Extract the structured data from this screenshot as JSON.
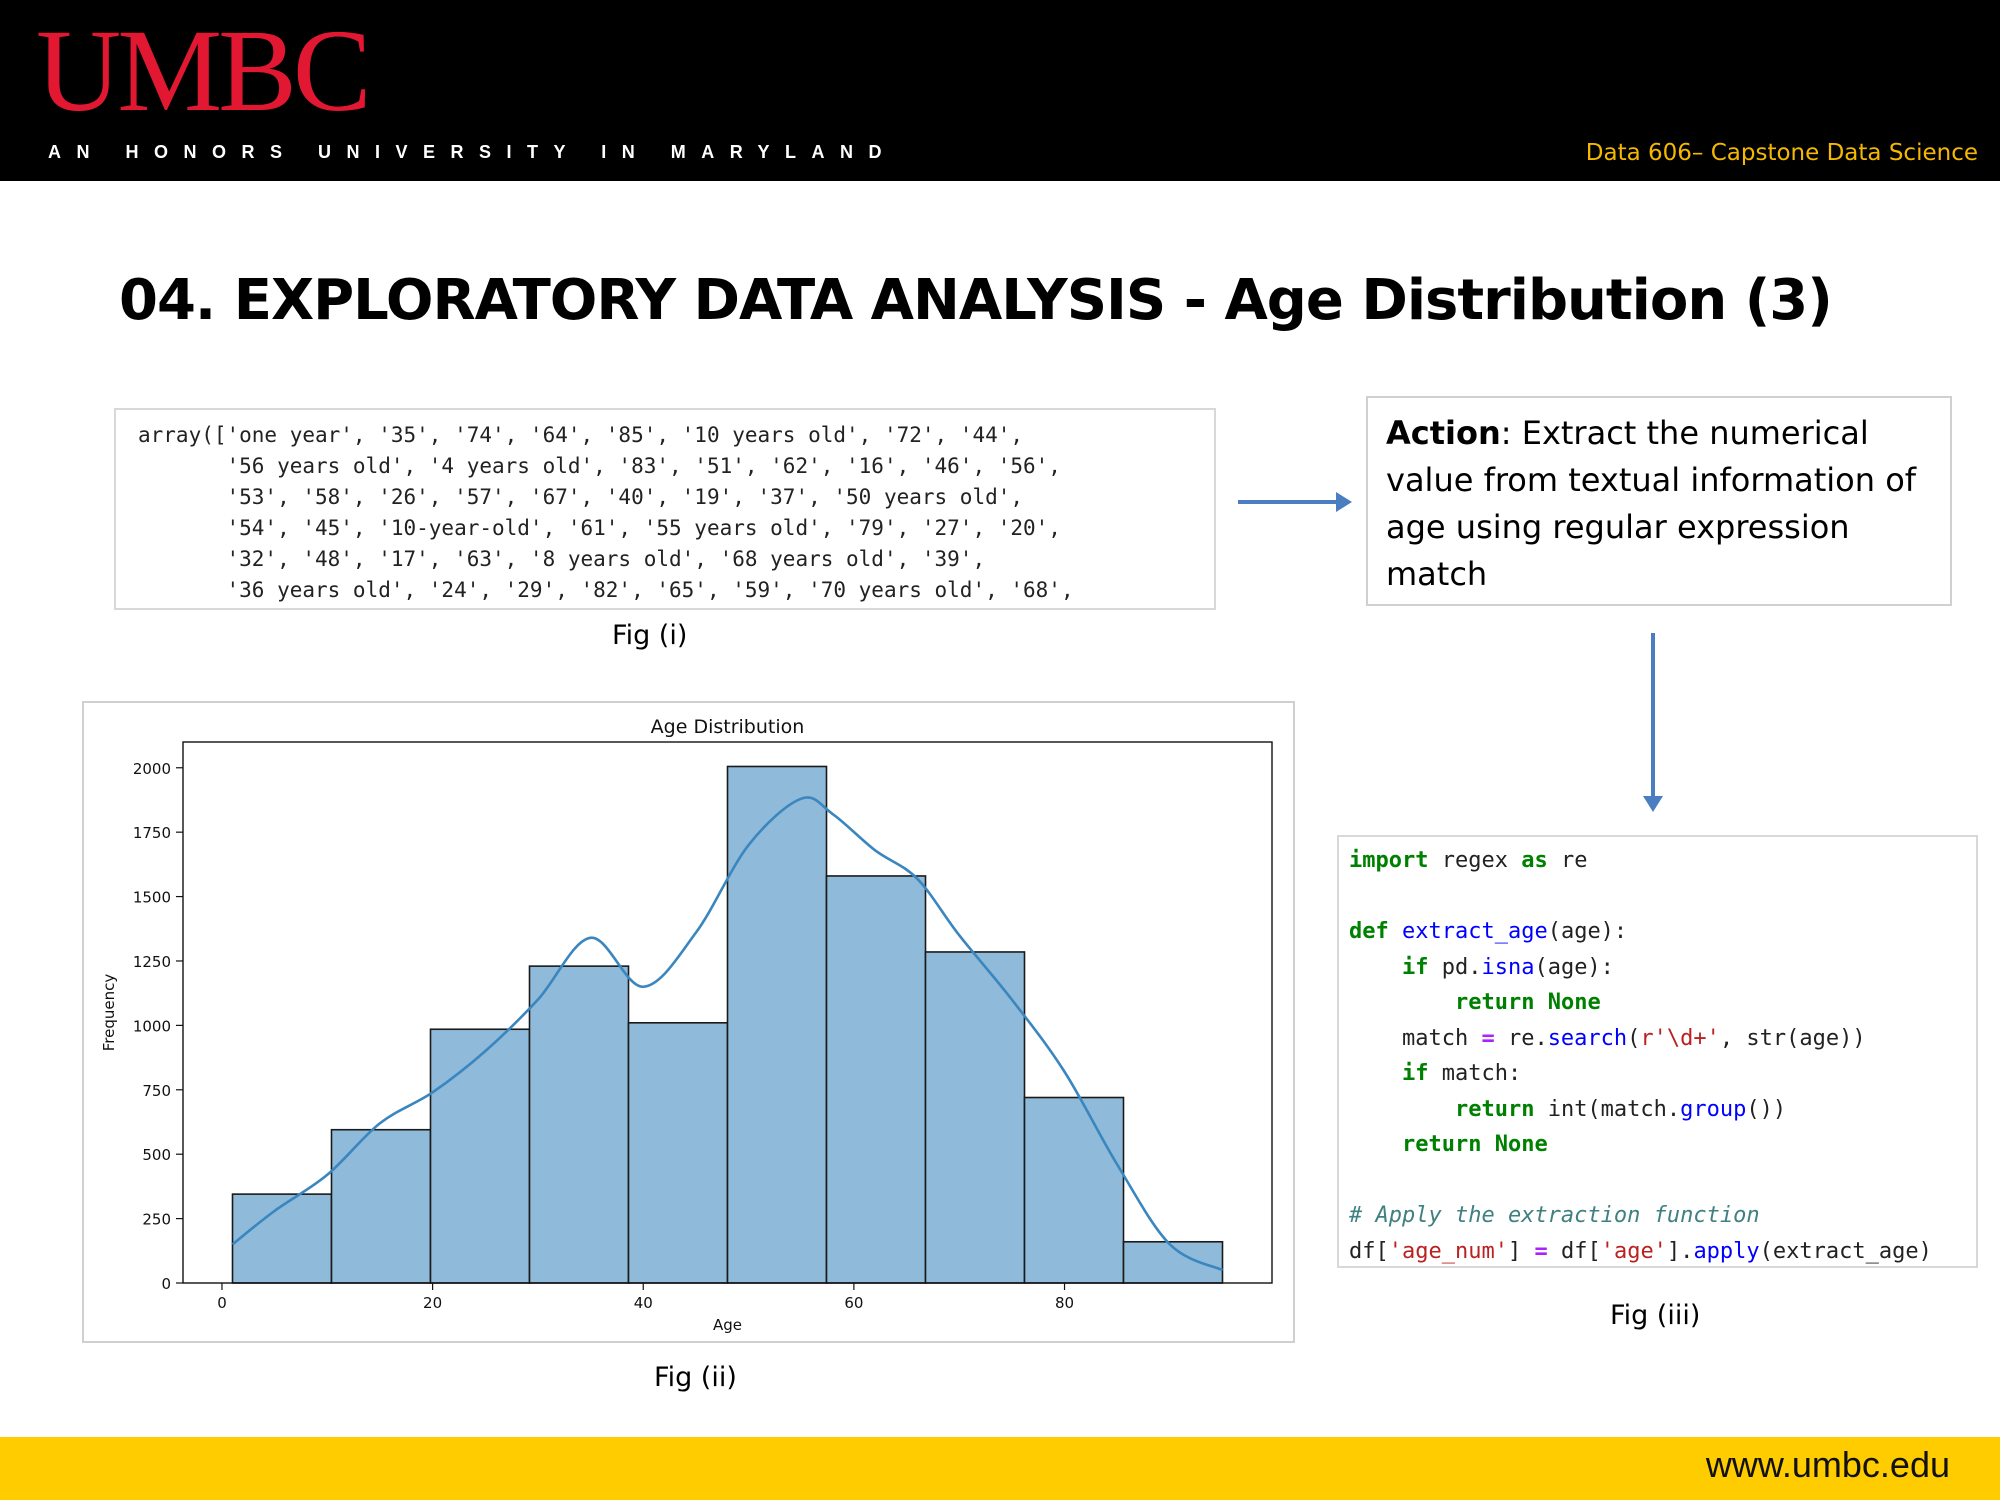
{
  "header": {
    "logo_text": "UMBC",
    "tagline": "AN HONORS UNIVERSITY IN MARYLAND",
    "course": "Data 606– Capstone Data Science"
  },
  "slide": {
    "title": "04. EXPLORATORY DATA ANALYSIS - Age Distribution (3)"
  },
  "fig_i": {
    "lines": [
      "array(['one year', '35', '74', '64', '85', '10 years old', '72', '44',",
      "       '56 years old', '4 years old', '83', '51', '62', '16', '46', '56',",
      "       '53', '58', '26', '57', '67', '40', '19', '37', '50 years old',",
      "       '54', '45', '10-year-old', '61', '55 years old', '79', '27', '20',",
      "       '32', '48', '17', '63', '8 years old', '68 years old', '39',",
      "       '36 years old', '24', '29', '82', '65', '59', '70 years old', '68',"
    ],
    "caption": "Fig (i)"
  },
  "action": {
    "label": "Action",
    "text": ": Extract the numerical value from textual information of age using regular expression match"
  },
  "fig_ii": {
    "caption": "Fig (ii)"
  },
  "chart_data": {
    "type": "bar",
    "title": "Age Distribution",
    "xlabel": "Age",
    "ylabel": "Frequency",
    "xlim": [
      -3.7,
      99.7
    ],
    "ylim": [
      0,
      2100
    ],
    "xticks": [
      0,
      20,
      40,
      60,
      80
    ],
    "yticks": [
      0,
      250,
      500,
      750,
      1000,
      1250,
      1500,
      1750,
      2000
    ],
    "bin_edges": [
      1,
      10.4,
      19.8,
      29.2,
      38.6,
      48,
      57.4,
      66.8,
      76.2,
      85.6,
      95
    ],
    "values": [
      345,
      595,
      985,
      1230,
      1010,
      2005,
      1580,
      1285,
      720,
      160
    ],
    "kde": {
      "x": [
        1,
        5,
        10,
        15,
        20,
        25,
        30,
        35,
        40,
        45,
        50,
        55,
        58,
        62,
        66,
        70,
        75,
        80,
        85,
        90,
        95
      ],
      "y": [
        150,
        280,
        420,
        620,
        740,
        900,
        1100,
        1340,
        1150,
        1360,
        1700,
        1880,
        1820,
        1680,
        1570,
        1350,
        1100,
        820,
        460,
        150,
        50
      ]
    },
    "bar_color": "#8fbad9",
    "line_color": "#3a86bf",
    "grid": false
  },
  "fig_iii": {
    "lines": [
      [
        {
          "t": "import",
          "c": "kw"
        },
        {
          "t": " regex "
        },
        {
          "t": "as",
          "c": "kw"
        },
        {
          "t": " re"
        }
      ],
      [],
      [
        {
          "t": "def",
          "c": "kw"
        },
        {
          "t": " "
        },
        {
          "t": "extract_age",
          "c": "fn"
        },
        {
          "t": "(age):"
        }
      ],
      [
        {
          "t": "    "
        },
        {
          "t": "if",
          "c": "kw"
        },
        {
          "t": " pd."
        },
        {
          "t": "isna",
          "c": "fn"
        },
        {
          "t": "(age):"
        }
      ],
      [
        {
          "t": "        "
        },
        {
          "t": "return",
          "c": "kw"
        },
        {
          "t": " "
        },
        {
          "t": "None",
          "c": "kw"
        }
      ],
      [
        {
          "t": "    match "
        },
        {
          "t": "=",
          "c": "op"
        },
        {
          "t": " re."
        },
        {
          "t": "search",
          "c": "fn"
        },
        {
          "t": "("
        },
        {
          "t": "r'\\d+'",
          "c": "st"
        },
        {
          "t": ", str(age))"
        }
      ],
      [
        {
          "t": "    "
        },
        {
          "t": "if",
          "c": "kw"
        },
        {
          "t": " match:"
        }
      ],
      [
        {
          "t": "        "
        },
        {
          "t": "return",
          "c": "kw"
        },
        {
          "t": " int(match."
        },
        {
          "t": "group",
          "c": "fn"
        },
        {
          "t": "())"
        }
      ],
      [
        {
          "t": "    "
        },
        {
          "t": "return",
          "c": "kw"
        },
        {
          "t": " "
        },
        {
          "t": "None",
          "c": "kw"
        }
      ],
      [],
      [
        {
          "t": "# Apply the extraction function",
          "c": "cm"
        }
      ],
      [
        {
          "t": "df["
        },
        {
          "t": "'age_num'",
          "c": "st"
        },
        {
          "t": "] "
        },
        {
          "t": "=",
          "c": "op"
        },
        {
          "t": " df["
        },
        {
          "t": "'age'",
          "c": "st"
        },
        {
          "t": "]."
        },
        {
          "t": "apply",
          "c": "fn"
        },
        {
          "t": "(extract_age)"
        }
      ]
    ],
    "caption": "Fig (iii)"
  },
  "footer": {
    "url": "www.umbc.edu"
  }
}
